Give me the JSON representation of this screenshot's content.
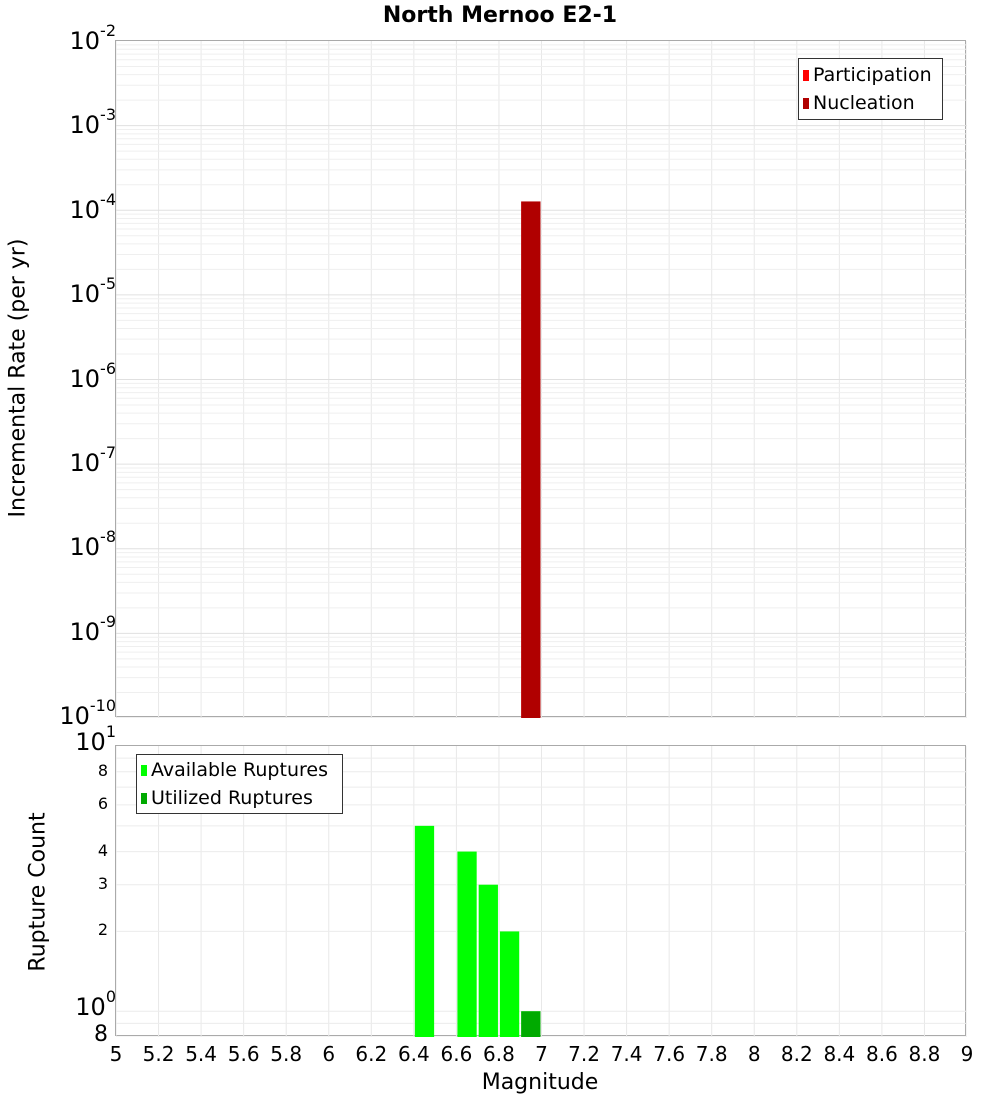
{
  "title": "North Mernoo E2-1",
  "top_plot": {
    "ylabel": "Incremental Rate (per yr)",
    "y_ticks": [
      {
        "base": "10",
        "exp": "-2"
      },
      {
        "base": "10",
        "exp": "-3"
      },
      {
        "base": "10",
        "exp": "-4"
      },
      {
        "base": "10",
        "exp": "-5"
      },
      {
        "base": "10",
        "exp": "-6"
      },
      {
        "base": "10",
        "exp": "-7"
      },
      {
        "base": "10",
        "exp": "-8"
      },
      {
        "base": "10",
        "exp": "-9"
      },
      {
        "base": "10",
        "exp": "-10"
      }
    ],
    "legend": [
      {
        "label": "Participation",
        "color": "#ff0000"
      },
      {
        "label": "Nucleation",
        "color": "#b00000"
      }
    ]
  },
  "bottom_plot": {
    "ylabel": "Rupture Count",
    "y_major": [
      {
        "base": "10",
        "exp": "1"
      },
      {
        "base": "10",
        "exp": "0"
      }
    ],
    "y_minor": [
      "8",
      "6",
      "4",
      "3",
      "2"
    ],
    "y_bottom": "8",
    "legend": [
      {
        "label": "Available Ruptures",
        "color": "#00ff00"
      },
      {
        "label": "Utilized Ruptures",
        "color": "#00aa00"
      }
    ]
  },
  "x_axis": {
    "label": "Magnitude",
    "ticks": [
      "5",
      "5.2",
      "5.4",
      "5.6",
      "5.8",
      "6",
      "6.2",
      "6.4",
      "6.6",
      "6.8",
      "7",
      "7.2",
      "7.4",
      "7.6",
      "7.8",
      "8",
      "8.2",
      "8.4",
      "8.6",
      "8.8",
      "9"
    ]
  },
  "chart_data": [
    {
      "type": "bar",
      "title": "North Mernoo E2-1",
      "xlabel": "Magnitude",
      "ylabel": "Incremental Rate (per yr)",
      "yscale": "log",
      "xlim": [
        5,
        9
      ],
      "ylim": [
        1e-10,
        0.01
      ],
      "grid": true,
      "legend_position": "top-right",
      "series": [
        {
          "name": "Participation",
          "color": "#ff0000",
          "x": [
            6.95
          ],
          "values": [
            0.000127
          ]
        },
        {
          "name": "Nucleation",
          "color": "#b00000",
          "x": [
            6.95
          ],
          "values": [
            0.000127
          ]
        }
      ]
    },
    {
      "type": "bar",
      "title": "",
      "xlabel": "Magnitude",
      "ylabel": "Rupture Count",
      "yscale": "log",
      "xlim": [
        5,
        9
      ],
      "ylim": [
        0.8,
        10
      ],
      "grid": true,
      "legend_position": "top-left",
      "series": [
        {
          "name": "Available Ruptures",
          "color": "#00ff00",
          "x": [
            6.45,
            6.65,
            6.75,
            6.85,
            6.95
          ],
          "values": [
            5,
            4,
            3,
            2,
            1
          ]
        },
        {
          "name": "Utilized Ruptures",
          "color": "#00aa00",
          "x": [
            6.95
          ],
          "values": [
            1
          ]
        }
      ]
    }
  ]
}
